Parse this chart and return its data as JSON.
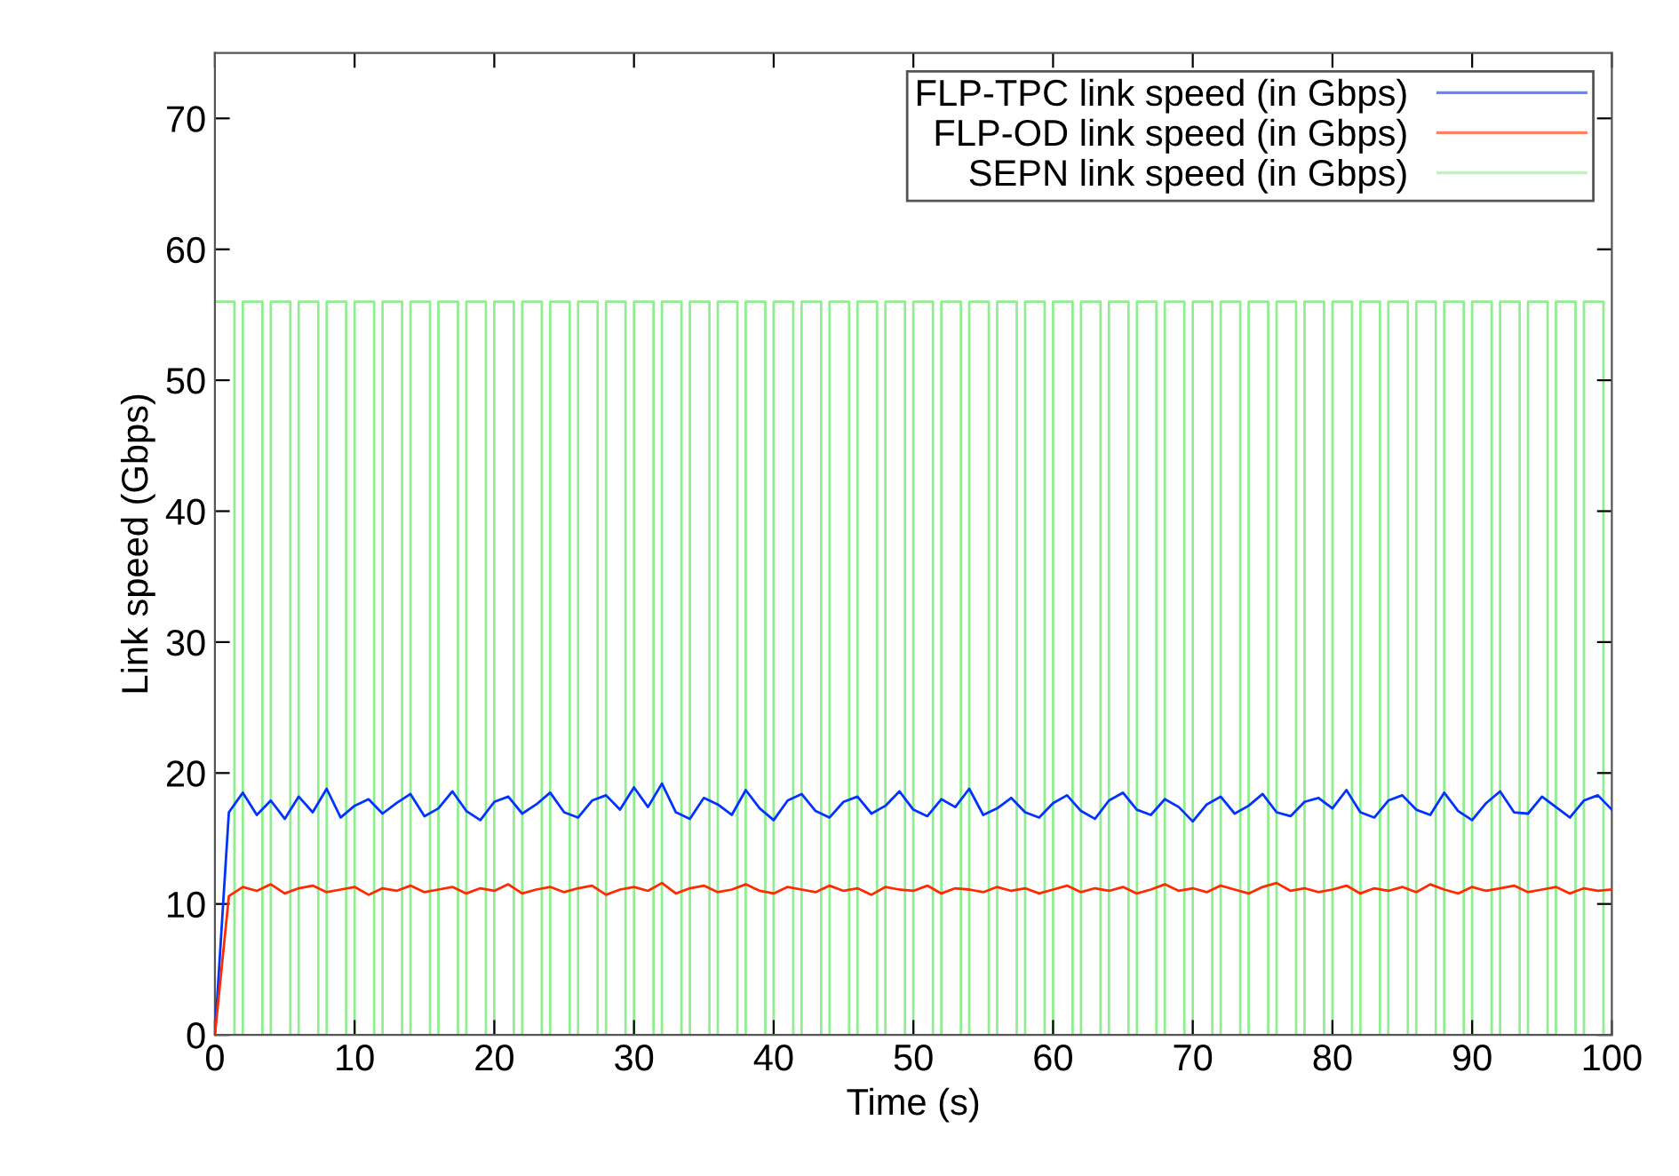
{
  "chart_data": {
    "type": "line",
    "xlabel": "Time (s)",
    "ylabel": "Link speed (Gbps)",
    "xlim": [
      0,
      100
    ],
    "xticks": [
      0,
      10,
      20,
      30,
      40,
      50,
      60,
      70,
      80,
      90,
      100
    ],
    "ylim": [
      0,
      75
    ],
    "yticks": [
      0,
      10,
      20,
      30,
      40,
      50,
      60,
      70
    ],
    "grid": false,
    "legend": "top right",
    "marker": "none",
    "line_style": "solid",
    "x": [
      0,
      1,
      2,
      3,
      4,
      5,
      6,
      7,
      8,
      9,
      10,
      11,
      12,
      13,
      14,
      15,
      16,
      17,
      18,
      19,
      20,
      21,
      22,
      23,
      24,
      25,
      26,
      27,
      28,
      29,
      30,
      31,
      32,
      33,
      34,
      35,
      36,
      37,
      38,
      39,
      40,
      41,
      42,
      43,
      44,
      45,
      46,
      47,
      48,
      49,
      50,
      51,
      52,
      53,
      54,
      55,
      56,
      57,
      58,
      59,
      60,
      61,
      62,
      63,
      64,
      65,
      66,
      67,
      68,
      69,
      70,
      71,
      72,
      73,
      74,
      75,
      76,
      77,
      78,
      79,
      80,
      81,
      82,
      83,
      84,
      85,
      86,
      87,
      88,
      89,
      90,
      91,
      92,
      93,
      94,
      95,
      96,
      97,
      98,
      99,
      100
    ],
    "series": [
      {
        "name": "FLP-TPC link speed (in Gbps)",
        "color": "#0033ff",
        "values": [
          0,
          17.0,
          18.5,
          16.8,
          17.9,
          16.5,
          18.2,
          17.0,
          18.8,
          16.6,
          17.5,
          18.0,
          16.9,
          17.7,
          18.4,
          16.7,
          17.3,
          18.6,
          17.1,
          16.4,
          17.8,
          18.2,
          16.9,
          17.6,
          18.5,
          17.0,
          16.6,
          17.9,
          18.3,
          17.2,
          18.9,
          17.4,
          19.2,
          17.0,
          16.5,
          18.1,
          17.6,
          16.8,
          18.7,
          17.3,
          16.4,
          17.9,
          18.4,
          17.1,
          16.6,
          17.8,
          18.2,
          16.9,
          17.5,
          18.6,
          17.2,
          16.7,
          18.0,
          17.4,
          18.8,
          16.8,
          17.3,
          18.1,
          17.0,
          16.6,
          17.7,
          18.3,
          17.1,
          16.5,
          17.9,
          18.5,
          17.2,
          16.8,
          18.0,
          17.4,
          16.3,
          17.6,
          18.2,
          16.9,
          17.5,
          18.4,
          17.0,
          16.7,
          17.8,
          18.1,
          17.3,
          18.7,
          17.0,
          16.6,
          17.9,
          18.3,
          17.2,
          16.8,
          18.5,
          17.1,
          16.4,
          17.7,
          18.6,
          17.0,
          16.9,
          18.2,
          17.4,
          16.6,
          17.9,
          18.3,
          17.2
        ]
      },
      {
        "name": "FLP-OD link speed (in Gbps)",
        "color": "#ff2a00",
        "values": [
          0,
          10.6,
          11.3,
          11.0,
          11.5,
          10.8,
          11.2,
          11.4,
          10.9,
          11.1,
          11.3,
          10.7,
          11.2,
          11.0,
          11.4,
          10.9,
          11.1,
          11.3,
          10.8,
          11.2,
          11.0,
          11.5,
          10.8,
          11.1,
          11.3,
          10.9,
          11.2,
          11.4,
          10.7,
          11.1,
          11.3,
          11.0,
          11.6,
          10.8,
          11.2,
          11.4,
          10.9,
          11.1,
          11.5,
          11.0,
          10.8,
          11.3,
          11.1,
          10.9,
          11.4,
          11.0,
          11.2,
          10.7,
          11.3,
          11.1,
          11.0,
          11.4,
          10.8,
          11.2,
          11.1,
          10.9,
          11.3,
          11.0,
          11.2,
          10.8,
          11.1,
          11.4,
          10.9,
          11.2,
          11.0,
          11.3,
          10.8,
          11.1,
          11.5,
          11.0,
          11.2,
          10.9,
          11.4,
          11.1,
          10.8,
          11.3,
          11.6,
          11.0,
          11.2,
          10.9,
          11.1,
          11.4,
          10.8,
          11.2,
          11.0,
          11.3,
          10.9,
          11.5,
          11.1,
          10.8,
          11.3,
          11.0,
          11.2,
          11.4,
          10.9,
          11.1,
          11.3,
          10.8,
          11.2,
          11.0,
          11.1
        ]
      },
      {
        "name": "SEPN link speed (in Gbps)",
        "color": "#90ee90",
        "type": "step",
        "x": [
          0,
          1.4,
          2,
          3.4,
          4,
          5.4,
          6,
          7.4,
          8,
          9.4,
          10,
          11.4,
          12,
          13.4,
          14,
          15.4,
          16,
          17.4,
          18,
          19.4,
          20,
          21.4,
          22,
          23.4,
          24,
          25.4,
          26,
          27.4,
          28,
          29.4,
          30,
          31.4,
          32,
          33.4,
          34,
          35.4,
          36,
          37.4,
          38,
          39.4,
          40,
          41.4,
          42,
          43.4,
          44,
          45.4,
          46,
          47.4,
          48,
          49.4,
          50,
          51.4,
          52,
          53.4,
          54,
          55.4,
          56,
          57.4,
          58,
          59.4,
          60,
          61.4,
          62,
          63.4,
          64,
          65.4,
          66,
          67.4,
          68,
          69.4,
          70,
          71.4,
          72,
          73.4,
          74,
          75.4,
          76,
          77.4,
          78,
          79.4,
          80,
          81.4,
          82,
          83.4,
          84,
          85.4,
          86,
          87.4,
          88,
          89.4,
          90,
          91.4,
          92,
          93.4,
          94,
          95.4,
          96,
          97.4,
          98,
          99.4,
          100
        ],
        "values": [
          56,
          0,
          56,
          0,
          56,
          0,
          56,
          0,
          56,
          0,
          56,
          0,
          56,
          0,
          56,
          0,
          56,
          0,
          56,
          0,
          56,
          0,
          56,
          0,
          56,
          0,
          56,
          0,
          56,
          0,
          56,
          0,
          56,
          0,
          56,
          0,
          56,
          0,
          56,
          0,
          56,
          0,
          56,
          0,
          56,
          0,
          56,
          0,
          56,
          0,
          56,
          0,
          56,
          0,
          56,
          0,
          56,
          0,
          56,
          0,
          56,
          0,
          56,
          0,
          56,
          0,
          56,
          0,
          56,
          0,
          56,
          0,
          56,
          0,
          56,
          0,
          56,
          0,
          56,
          0,
          56,
          0,
          56,
          0,
          56,
          0,
          56,
          0,
          56,
          0,
          56,
          0,
          56,
          0,
          56,
          0,
          56,
          0,
          56,
          0,
          0
        ]
      }
    ]
  }
}
